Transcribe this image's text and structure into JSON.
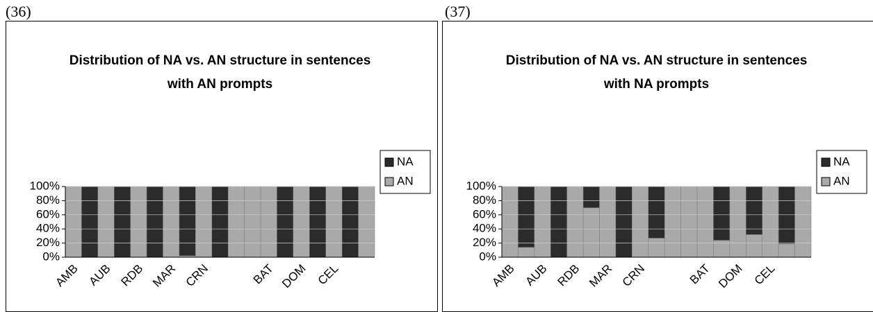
{
  "figure_labels": [
    "(36)",
    "(37)"
  ],
  "chart_data": [
    {
      "type": "bar",
      "stacked": true,
      "title": "Distribution of NA vs. AN structure in sentences with AN prompts",
      "categories": [
        "AMB",
        null,
        "AUB",
        null,
        "RDB",
        null,
        "MAR",
        null,
        "CRN",
        null,
        null,
        null,
        "BAT",
        null,
        "DOM",
        null,
        "CEL",
        null,
        null
      ],
      "series": [
        {
          "name": "NA",
          "color": "#2b2b2b",
          "values": [
            0,
            100,
            0,
            100,
            0,
            100,
            0,
            98,
            0,
            100,
            0,
            0,
            0,
            100,
            0,
            100,
            0,
            100,
            0
          ]
        },
        {
          "name": "AN",
          "color": "#a9a9a9",
          "values": [
            100,
            0,
            100,
            0,
            100,
            0,
            100,
            2,
            100,
            0,
            100,
            100,
            100,
            0,
            100,
            0,
            100,
            0,
            100
          ]
        }
      ],
      "ylim": [
        0,
        100
      ],
      "yticks": [
        {
          "value": 0,
          "label": "0%"
        },
        {
          "value": 20,
          "label": "20%"
        },
        {
          "value": 40,
          "label": "40%"
        },
        {
          "value": 60,
          "label": "60%"
        },
        {
          "value": 80,
          "label": "80%"
        },
        {
          "value": 100,
          "label": "100%"
        }
      ],
      "grid": true,
      "legend": "right"
    },
    {
      "type": "bar",
      "stacked": true,
      "title": "Distribution of NA vs. AN structure in sentences with NA prompts",
      "categories": [
        "AMB",
        null,
        "AUB",
        null,
        "RDB",
        null,
        "MAR",
        null,
        "CRN",
        null,
        null,
        null,
        "BAT",
        null,
        "DOM",
        null,
        "CEL",
        null,
        null
      ],
      "series": [
        {
          "name": "NA",
          "color": "#2b2b2b",
          "values": [
            0,
            86,
            0,
            100,
            0,
            30,
            0,
            100,
            0,
            73,
            0,
            0,
            0,
            76,
            0,
            68,
            0,
            81,
            0
          ]
        },
        {
          "name": "AN",
          "color": "#a9a9a9",
          "values": [
            100,
            14,
            100,
            0,
            100,
            70,
            100,
            0,
            100,
            27,
            100,
            100,
            100,
            24,
            100,
            32,
            100,
            19,
            100
          ]
        }
      ],
      "ylim": [
        0,
        100
      ],
      "yticks": [
        {
          "value": 0,
          "label": "0%"
        },
        {
          "value": 20,
          "label": "20%"
        },
        {
          "value": 40,
          "label": "40%"
        },
        {
          "value": 60,
          "label": "60%"
        },
        {
          "value": 80,
          "label": "80%"
        },
        {
          "value": 100,
          "label": "100%"
        }
      ],
      "grid": true,
      "legend": "right"
    }
  ]
}
